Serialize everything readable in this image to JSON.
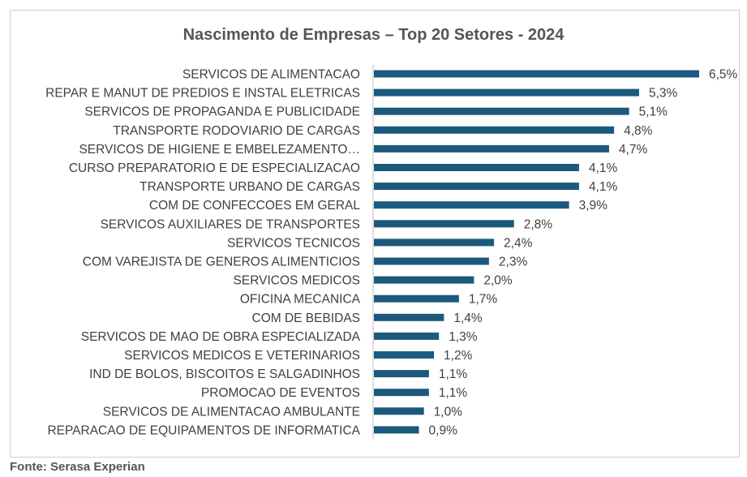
{
  "chart_data": {
    "type": "bar",
    "orientation": "horizontal",
    "title": "Nascimento de Empresas – Top 20 Setores - 2024",
    "xlabel": "",
    "ylabel": "",
    "unit": "%",
    "grid": false,
    "bar_color": "#1c5a7d",
    "xlim": [
      0,
      6.5
    ],
    "categories": [
      "SERVICOS DE ALIMENTACAO",
      "REPAR E MANUT DE PREDIOS E INSTAL ELETRICAS",
      "SERVICOS DE PROPAGANDA E PUBLICIDADE",
      "TRANSPORTE RODOVIARIO DE CARGAS",
      "SERVICOS DE HIGIENE E EMBELEZAMENTO…",
      "CURSO PREPARATORIO E DE ESPECIALIZACAO",
      "TRANSPORTE URBANO DE CARGAS",
      "COM DE CONFECCOES EM GERAL",
      "SERVICOS AUXILIARES DE TRANSPORTES",
      "SERVICOS TECNICOS",
      "COM VAREJISTA DE GENEROS ALIMENTICIOS",
      "SERVICOS MEDICOS",
      "OFICINA MECANICA",
      "COM DE BEBIDAS",
      "SERVICOS DE MAO DE OBRA ESPECIALIZADA",
      "SERVICOS MEDICOS E VETERINARIOS",
      "IND DE BOLOS, BISCOITOS E SALGADINHOS",
      "PROMOCAO DE EVENTOS",
      "SERVICOS DE ALIMENTACAO AMBULANTE",
      "REPARACAO DE EQUIPAMENTOS DE INFORMATICA"
    ],
    "values": [
      6.5,
      5.3,
      5.1,
      4.8,
      4.7,
      4.1,
      4.1,
      3.9,
      2.8,
      2.4,
      2.3,
      2.0,
      1.7,
      1.4,
      1.3,
      1.2,
      1.1,
      1.1,
      1.0,
      0.9
    ],
    "value_labels": [
      "6,5%",
      "5,3%",
      "5,1%",
      "4,8%",
      "4,7%",
      "4,1%",
      "4,1%",
      "3,9%",
      "2,8%",
      "2,4%",
      "2,3%",
      "2,0%",
      "1,7%",
      "1,4%",
      "1,3%",
      "1,2%",
      "1,1%",
      "1,1%",
      "1,0%",
      "0,9%"
    ]
  },
  "footer": {
    "source": "Fonte: Serasa Experian"
  }
}
